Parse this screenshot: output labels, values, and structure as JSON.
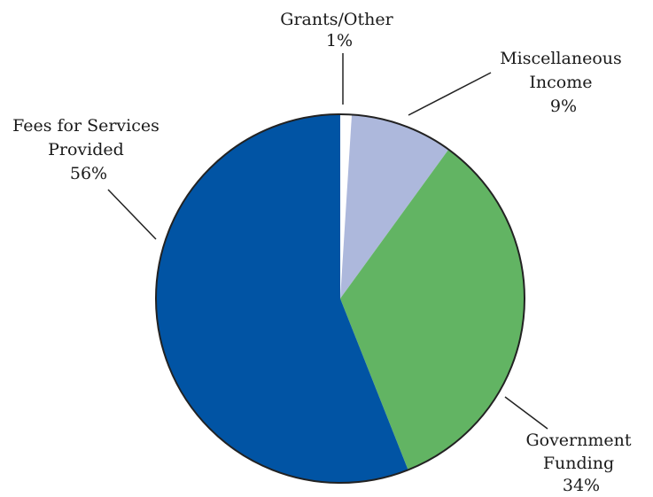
{
  "chart_data": {
    "type": "pie",
    "start_angle_deg": 0,
    "direction": "clockwise",
    "slices": [
      {
        "label": [
          "Grants/Other"
        ],
        "percent_label": "1%",
        "value": 1,
        "color": "#ffffff"
      },
      {
        "label": [
          "Miscellaneous",
          "Income"
        ],
        "percent_label": "9%",
        "value": 9,
        "color": "#adb8dc"
      },
      {
        "label": [
          "Government",
          "Funding"
        ],
        "percent_label": "34%",
        "value": 34,
        "color": "#62b463"
      },
      {
        "label": [
          "Fees for Services",
          "Provided"
        ],
        "percent_label": "56%",
        "value": 56,
        "color": "#0154a4"
      }
    ]
  }
}
